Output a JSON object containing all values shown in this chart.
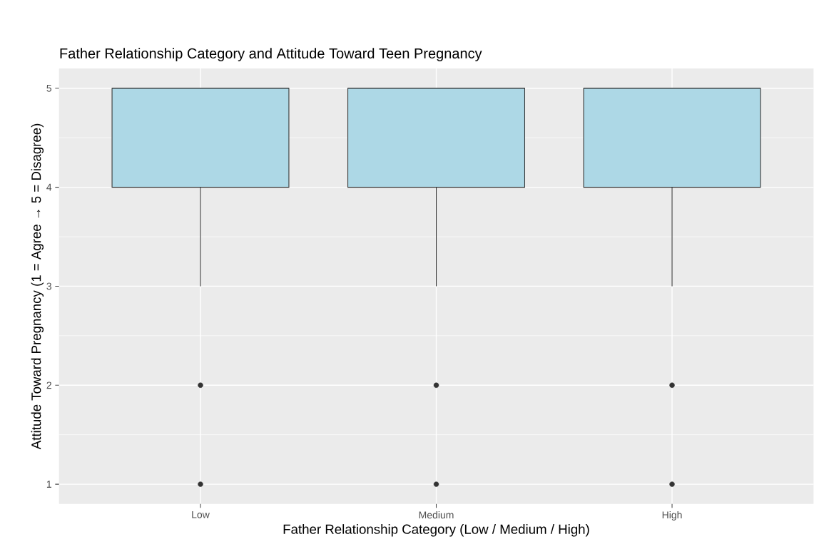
{
  "chart_data": {
    "type": "box",
    "title": "Father Relationship Category and Attitude Toward Teen Pregnancy",
    "xlabel": "Father Relationship Category (Low / Medium / High)",
    "ylabel": "Attitude Toward Pregnancy (1 = Agree → 5 = Disagree)",
    "categories": [
      "Low",
      "Medium",
      "High"
    ],
    "boxes": [
      {
        "low": 3,
        "q1": 4,
        "median": 5,
        "q3": 5,
        "high": 5,
        "outliers": [
          1,
          2
        ]
      },
      {
        "low": 3,
        "q1": 4,
        "median": 5,
        "q3": 5,
        "high": 5,
        "outliers": [
          1,
          2
        ]
      },
      {
        "low": 3,
        "q1": 4,
        "median": 5,
        "q3": 5,
        "high": 5,
        "outliers": [
          1,
          2
        ]
      }
    ],
    "color": "#add8e6",
    "ylim": [
      0.8,
      5.2
    ],
    "yticks": [
      1,
      2,
      3,
      4,
      5
    ],
    "grid": true
  }
}
